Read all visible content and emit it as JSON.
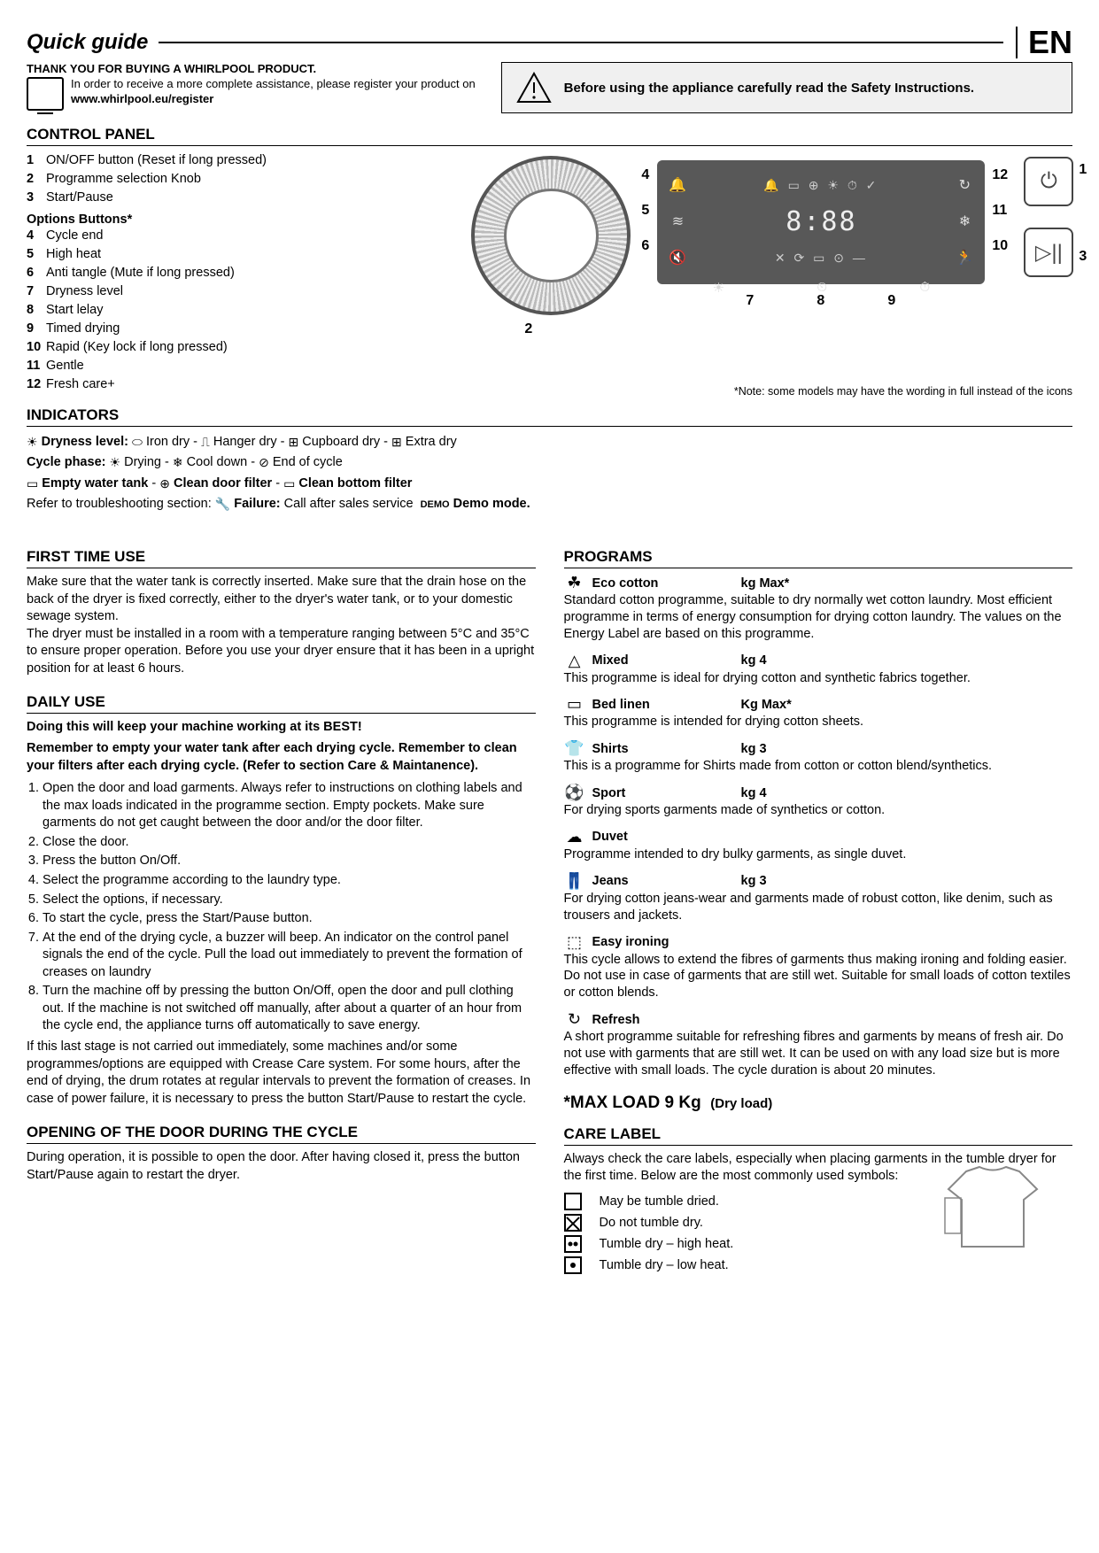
{
  "header": {
    "title": "Quick guide",
    "lang": "EN"
  },
  "thanks": {
    "line1": "THANK YOU FOR BUYING A WHIRLPOOL PRODUCT.",
    "line2": "In order to receive a more complete assistance, please register your product on",
    "url": "www.whirlpool.eu/register"
  },
  "safety": "Before using the appliance carefully read the Safety Instructions.",
  "control_panel": {
    "heading": "CONTROL PANEL",
    "items": [
      {
        "n": "1",
        "t": "ON/OFF button (Reset if long pressed)"
      },
      {
        "n": "2",
        "t": "Programme selection Knob"
      },
      {
        "n": "3",
        "t": "Start/Pause"
      }
    ],
    "options_label": "Options Buttons*",
    "options": [
      {
        "n": "4",
        "t": "Cycle end"
      },
      {
        "n": "5",
        "t": "High heat"
      },
      {
        "n": "6",
        "t": "Anti tangle (Mute if long pressed)"
      },
      {
        "n": "7",
        "t": "Dryness level"
      },
      {
        "n": "8",
        "t": "Start lelay"
      },
      {
        "n": "9",
        "t": "Timed drying"
      },
      {
        "n": "10",
        "t": "Rapid (Key lock if long pressed)"
      },
      {
        "n": "11",
        "t": "Gentle"
      },
      {
        "n": "12",
        "t": "Fresh care+"
      }
    ],
    "note": "*Note: some models may have the wording in full instead of the icons",
    "display_time": "8:88",
    "labels": {
      "2": "2",
      "4": "4",
      "5": "5",
      "6": "6",
      "7": "7",
      "8": "8",
      "9": "9",
      "10": "10",
      "11": "11",
      "12": "12",
      "1": "1",
      "3": "3"
    }
  },
  "indicators": {
    "heading": "INDICATORS",
    "dryness": {
      "label": "Dryness level:",
      "opts": [
        "Iron dry",
        "Hanger dry",
        "Cupboard dry",
        "Extra dry"
      ]
    },
    "cycle": {
      "label": "Cycle phase:",
      "opts": [
        "Drying",
        "Cool down",
        "End of cycle"
      ]
    },
    "maint": [
      "Empty water tank",
      "Clean door filter",
      "Clean bottom filter"
    ],
    "trouble_prefix": "Refer to troubleshooting section:",
    "failure_label": "Failure:",
    "failure_text": "Call after sales service",
    "demo_badge": "DEMO",
    "demo_label": "Demo mode."
  },
  "first_time": {
    "heading": "FIRST TIME USE",
    "p1": "Make sure that the water tank is correctly inserted. Make sure that the drain hose on the back of the dryer is fixed correctly, either to the dryer's water tank, or to your domestic sewage system.",
    "p2": "The dryer must be installed in a room with a temperature ranging between 5°C and 35°C to ensure proper operation. Before you use your dryer ensure that it has been in a upright position for at least 6 hours."
  },
  "daily": {
    "heading": "DAILY USE",
    "b1": "Doing this will keep your machine working at its BEST!",
    "b2": "Remember to empty your water tank after each drying cycle. Remember to clean your filters after each drying cycle. (Refer to section Care & Maintanence).",
    "steps": [
      "Open the door and load garments. Always refer to instructions on clothing labels and the max loads indicated in the programme section. Empty pockets. Make sure  garments do not get caught between the door and/or the door filter.",
      "Close the door.",
      "Press the button On/Off.",
      "Select the programme according to the laundry type.",
      "Select the options, if necessary.",
      "To start the cycle, press the Start/Pause button.",
      "At the end of the drying cycle, a buzzer will beep. An indicator on the control panel signals the end of the cycle. Pull the load out immediately to prevent the formation of creases on laundry",
      "Turn the machine off by pressing the button On/Off, open the door and pull clothing out. If the machine is not switched off manually, after about a quarter of an hour from the cycle end, the appliance turns off automatically to save energy."
    ],
    "tail": "If this last stage is not carried out immediately, some machines and/or some programmes/options are equipped with Crease Care system. For some hours, after the end of drying,  the drum rotates at regular intervals to prevent the formation of creases. In case of power failure, it is necessary to press the button Start/Pause to restart the cycle."
  },
  "door": {
    "heading": "OPENING OF THE DOOR DURING THE CYCLE",
    "text": "During operation, it is possible to open the door. After having closed it, press the button Start/Pause again to restart the dryer."
  },
  "programs": {
    "heading": "PROGRAMS",
    "list": [
      {
        "icon": "☘",
        "name": "Eco cotton",
        "load": "kg Max*",
        "desc": "Standard cotton programme, suitable to dry normally wet cotton laundry. Most efficient programme in terms of energy consumption for drying cotton laundry. The values on the Energy Label are based on this programme."
      },
      {
        "icon": "△",
        "name": "Mixed",
        "load": "kg 4",
        "desc": "This programme is ideal for drying cotton and synthetic fabrics together."
      },
      {
        "icon": "▭",
        "name": "Bed linen",
        "load": "Kg Max*",
        "desc": "This programme is intended for drying cotton sheets."
      },
      {
        "icon": "👕",
        "name": "Shirts",
        "load": "kg 3",
        "desc": "This is a programme for Shirts made from cotton or  cotton blend/synthetics."
      },
      {
        "icon": "⚽",
        "name": "Sport",
        "load": "kg 4",
        "desc": "For drying sports garments made of synthetics or cotton."
      },
      {
        "icon": "☁",
        "name": "Duvet",
        "load": "",
        "desc": "Programme intended to dry bulky garments, as single duvet."
      },
      {
        "icon": "👖",
        "name": "Jeans",
        "load": "kg 3",
        "desc": "For drying cotton jeans-wear and garments made of robust cotton, like denim, such as trousers and jackets."
      },
      {
        "icon": "⬚",
        "name": "Easy ironing",
        "load": "",
        "desc": "This cycle allows to extend the fibres of garments thus making ironing and folding easier. Do not use in case of garments that are still wet. Suitable for small loads of cotton textiles or cotton blends."
      },
      {
        "icon": "↻",
        "name": "Refresh",
        "load": "",
        "desc": "A short programme suitable for refreshing fibres and garments by means of fresh air. Do not use with garments that are still wet. It can be used on with any load size but is more effective with small loads. The cycle duration is about 20 minutes."
      }
    ]
  },
  "maxload": {
    "main": "*MAX LOAD 9 Kg",
    "sub": "(Dry load)"
  },
  "care": {
    "heading": "CARE LABEL",
    "intro": "Always check the care labels, especially when placing garments in the tumble dryer for the first time. Below are the most commonly used symbols:",
    "rows": [
      {
        "sym": "plain",
        "t": "May be tumble dried."
      },
      {
        "sym": "x",
        "t": "Do not tumble dry."
      },
      {
        "sym": "dot2",
        "t": "Tumble dry – high heat."
      },
      {
        "sym": "dot",
        "t": "Tumble dry – low heat."
      }
    ]
  },
  "colors": {
    "panel_bg": "#585858",
    "page_bg": "#ffffff",
    "grey_box": "#f0f0f0"
  }
}
